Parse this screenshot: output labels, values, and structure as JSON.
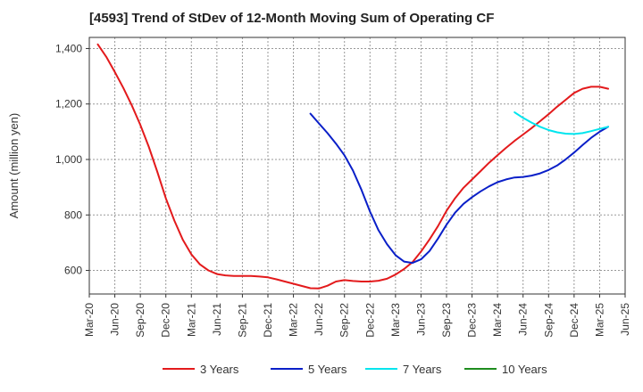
{
  "chart_data": {
    "type": "line",
    "title": "[4593]  Trend of StDev of 12-Month Moving Sum of Operating CF",
    "xlabel": "",
    "ylabel": "Amount (million yen)",
    "ylim": [
      515,
      1440
    ],
    "yticks": [
      600,
      800,
      1000,
      1200,
      1400
    ],
    "ytick_labels": [
      "600",
      "800",
      "1,000",
      "1,200",
      "1,400"
    ],
    "x_categories": [
      "Mar-20",
      "Jun-20",
      "Sep-20",
      "Dec-20",
      "Mar-21",
      "Jun-21",
      "Sep-21",
      "Dec-21",
      "Mar-22",
      "Jun-22",
      "Sep-22",
      "Dec-22",
      "Mar-23",
      "Jun-23",
      "Sep-23",
      "Dec-23",
      "Mar-24",
      "Jun-24",
      "Sep-24",
      "Dec-24",
      "Mar-25",
      "Jun-25"
    ],
    "grid": true,
    "legend_position": "bottom",
    "series": [
      {
        "name": "3 Years",
        "color": "#e31a1c",
        "points": [
          [
            "Apr-20",
            1415
          ],
          [
            "May-20",
            1370
          ],
          [
            "Jun-20",
            1315
          ],
          [
            "Jul-20",
            1258
          ],
          [
            "Aug-20",
            1195
          ],
          [
            "Sep-20",
            1125
          ],
          [
            "Oct-20",
            1045
          ],
          [
            "Nov-20",
            955
          ],
          [
            "Dec-20",
            860
          ],
          [
            "Jan-21",
            780
          ],
          [
            "Feb-21",
            710
          ],
          [
            "Mar-21",
            658
          ],
          [
            "Apr-21",
            622
          ],
          [
            "May-21",
            600
          ],
          [
            "Jun-21",
            587
          ],
          [
            "Jul-21",
            582
          ],
          [
            "Aug-21",
            580
          ],
          [
            "Sep-21",
            580
          ],
          [
            "Oct-21",
            580
          ],
          [
            "Nov-21",
            578
          ],
          [
            "Dec-21",
            575
          ],
          [
            "Jan-22",
            568
          ],
          [
            "Feb-22",
            560
          ],
          [
            "Mar-22",
            552
          ],
          [
            "Apr-22",
            544
          ],
          [
            "May-22",
            536
          ],
          [
            "Jun-22",
            535
          ],
          [
            "Jul-22",
            545
          ],
          [
            "Aug-22",
            560
          ],
          [
            "Sep-22",
            565
          ],
          [
            "Oct-22",
            562
          ],
          [
            "Nov-22",
            560
          ],
          [
            "Dec-22",
            560
          ],
          [
            "Jan-23",
            563
          ],
          [
            "Feb-23",
            570
          ],
          [
            "Mar-23",
            585
          ],
          [
            "Apr-23",
            605
          ],
          [
            "May-23",
            630
          ],
          [
            "Jun-23",
            668
          ],
          [
            "Jul-23",
            712
          ],
          [
            "Aug-23",
            760
          ],
          [
            "Sep-23",
            815
          ],
          [
            "Oct-23",
            860
          ],
          [
            "Nov-23",
            898
          ],
          [
            "Dec-23",
            928
          ],
          [
            "Jan-24",
            958
          ],
          [
            "Feb-24",
            988
          ],
          [
            "Mar-24",
            1015
          ],
          [
            "Apr-24",
            1042
          ],
          [
            "May-24",
            1067
          ],
          [
            "Jun-24",
            1090
          ],
          [
            "Jul-24",
            1113
          ],
          [
            "Aug-24",
            1138
          ],
          [
            "Sep-24",
            1163
          ],
          [
            "Oct-24",
            1190
          ],
          [
            "Nov-24",
            1215
          ],
          [
            "Dec-24",
            1240
          ],
          [
            "Jan-25",
            1255
          ],
          [
            "Feb-25",
            1262
          ],
          [
            "Mar-25",
            1262
          ],
          [
            "Apr-25",
            1255
          ]
        ]
      },
      {
        "name": "5 Years",
        "color": "#0a1fc8",
        "points": [
          [
            "May-22",
            1165
          ],
          [
            "Jun-22",
            1130
          ],
          [
            "Jul-22",
            1095
          ],
          [
            "Aug-22",
            1057
          ],
          [
            "Sep-22",
            1015
          ],
          [
            "Oct-22",
            960
          ],
          [
            "Nov-22",
            890
          ],
          [
            "Dec-22",
            812
          ],
          [
            "Jan-23",
            745
          ],
          [
            "Feb-23",
            695
          ],
          [
            "Mar-23",
            655
          ],
          [
            "Apr-23",
            632
          ],
          [
            "May-23",
            627
          ],
          [
            "Jun-23",
            640
          ],
          [
            "Jul-23",
            670
          ],
          [
            "Aug-23",
            715
          ],
          [
            "Sep-23",
            765
          ],
          [
            "Oct-23",
            808
          ],
          [
            "Nov-23",
            840
          ],
          [
            "Dec-23",
            864
          ],
          [
            "Jan-24",
            885
          ],
          [
            "Feb-24",
            903
          ],
          [
            "Mar-24",
            918
          ],
          [
            "Apr-24",
            928
          ],
          [
            "May-24",
            935
          ],
          [
            "Jun-24",
            937
          ],
          [
            "Jul-24",
            942
          ],
          [
            "Aug-24",
            950
          ],
          [
            "Sep-24",
            962
          ],
          [
            "Oct-24",
            978
          ],
          [
            "Nov-24",
            1000
          ],
          [
            "Dec-24",
            1025
          ],
          [
            "Jan-25",
            1052
          ],
          [
            "Feb-25",
            1078
          ],
          [
            "Mar-25",
            1100
          ],
          [
            "Apr-25",
            1118
          ]
        ]
      },
      {
        "name": "7 Years",
        "color": "#00e5ee",
        "points": [
          [
            "May-24",
            1170
          ],
          [
            "Jun-24",
            1150
          ],
          [
            "Jul-24",
            1133
          ],
          [
            "Aug-24",
            1118
          ],
          [
            "Sep-24",
            1106
          ],
          [
            "Oct-24",
            1098
          ],
          [
            "Nov-24",
            1093
          ],
          [
            "Dec-24",
            1092
          ],
          [
            "Jan-25",
            1095
          ],
          [
            "Feb-25",
            1102
          ],
          [
            "Mar-25",
            1110
          ],
          [
            "Apr-25",
            1118
          ]
        ]
      },
      {
        "name": "10 Years",
        "color": "#1e8c1e",
        "points": []
      }
    ]
  }
}
